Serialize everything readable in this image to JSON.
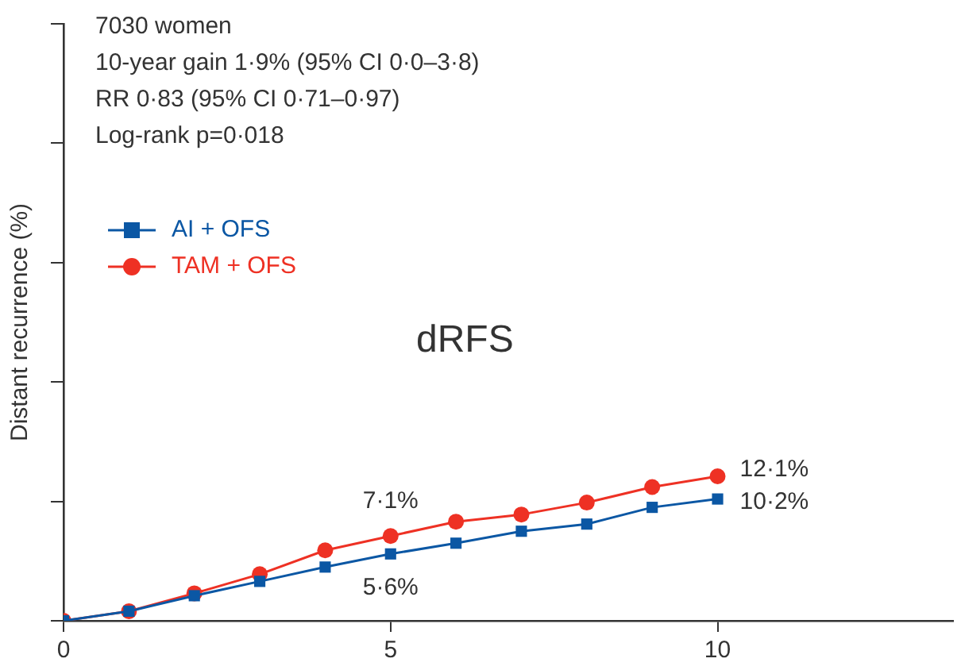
{
  "chart_data": {
    "type": "line",
    "ylabel": "Distant recurrence (%)",
    "annotations": [
      "7030 women",
      "10-year gain 1·9% (95% CI 0·0–3·8)",
      "RR 0·83 (95% CI 0·71–0·97)",
      "Log-rank p=0·018",
      "dRFS"
    ],
    "x": [
      0,
      1,
      2,
      3,
      4,
      5,
      6,
      7,
      8,
      9,
      10
    ],
    "xlim": [
      0,
      13.6
    ],
    "xticks": [
      0,
      5,
      10
    ],
    "ylim": [
      0,
      50
    ],
    "yticks": [
      {
        "value": 0,
        "label": null
      },
      {
        "value": 10,
        "label": null
      },
      {
        "value": 20,
        "label": null
      },
      {
        "value": 30,
        "label": null
      },
      {
        "value": 40,
        "label": null
      },
      {
        "value": 50,
        "label": null
      }
    ],
    "series": [
      {
        "name": "AI + OFS",
        "color": "#0b57a4",
        "marker": "square",
        "values": [
          0,
          0.8,
          2.1,
          3.3,
          4.5,
          5.6,
          6.5,
          7.5,
          8.1,
          9.5,
          10.2
        ],
        "value_labels": [
          null,
          null,
          null,
          null,
          null,
          "5·6%",
          null,
          null,
          null,
          null,
          "10·2%"
        ]
      },
      {
        "name": "TAM + OFS",
        "color": "#ee3124",
        "marker": "circle",
        "values": [
          0,
          0.8,
          2.3,
          3.9,
          5.9,
          7.1,
          8.3,
          8.9,
          9.9,
          11.2,
          12.1
        ],
        "value_labels": [
          null,
          null,
          null,
          null,
          null,
          "7·1%",
          null,
          null,
          null,
          null,
          "12·1%"
        ]
      }
    ],
    "legend": "top left",
    "grid": false,
    "line_style": "solid"
  }
}
